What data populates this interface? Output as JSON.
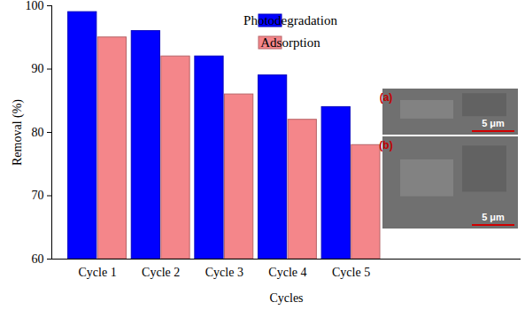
{
  "chart_data": {
    "type": "bar",
    "categories": [
      "Cycle 1",
      "Cycle 2",
      "Cycle 3",
      "Cycle 4",
      "Cycle 5"
    ],
    "series": [
      {
        "name": "Photodegradation",
        "color": "#0000ff",
        "values": [
          99,
          96,
          92,
          89,
          84
        ]
      },
      {
        "name": "Adsorption",
        "color": "#f4868a",
        "values": [
          95,
          92,
          86,
          82,
          78
        ]
      }
    ],
    "x_label": "Cycles",
    "y_label": "Removal (%)",
    "ylim": [
      60,
      100
    ],
    "yticks": [
      60,
      70,
      80,
      90,
      100
    ],
    "legend": "upper center",
    "annotations": [
      "(a)",
      "5 μm",
      "(b)",
      "5 μm"
    ]
  }
}
